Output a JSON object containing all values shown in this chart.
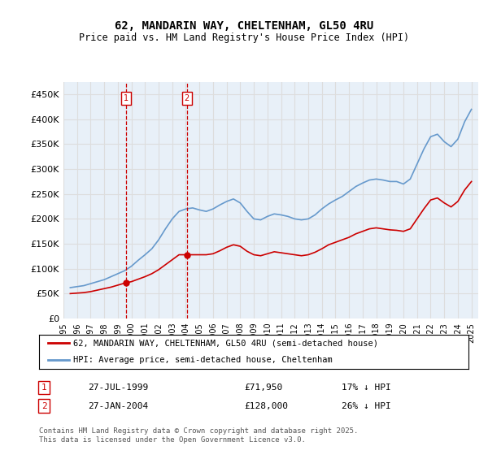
{
  "title": "62, MANDARIN WAY, CHELTENHAM, GL50 4RU",
  "subtitle": "Price paid vs. HM Land Registry's House Price Index (HPI)",
  "legend_line1": "62, MANDARIN WAY, CHELTENHAM, GL50 4RU (semi-detached house)",
  "legend_line2": "HPI: Average price, semi-detached house, Cheltenham",
  "footer": "Contains HM Land Registry data © Crown copyright and database right 2025.\nThis data is licensed under the Open Government Licence v3.0.",
  "annotation1_label": "1",
  "annotation1_date": "27-JUL-1999",
  "annotation1_price": "£71,950",
  "annotation1_hpi": "17% ↓ HPI",
  "annotation2_label": "2",
  "annotation2_date": "27-JAN-2004",
  "annotation2_price": "£128,000",
  "annotation2_hpi": "26% ↓ HPI",
  "red_color": "#cc0000",
  "blue_color": "#6699cc",
  "background_color": "#ffffff",
  "grid_color": "#dddddd",
  "ylim": [
    0,
    475000
  ],
  "yticks": [
    0,
    50000,
    100000,
    150000,
    200000,
    250000,
    300000,
    350000,
    400000,
    450000
  ],
  "sale1_x": 1999.58,
  "sale1_y": 71950,
  "sale2_x": 2004.08,
  "sale2_y": 128000,
  "hpi_x": [
    1995.5,
    1996.0,
    1996.5,
    1997.0,
    1997.5,
    1998.0,
    1998.5,
    1999.0,
    1999.5,
    2000.0,
    2000.5,
    2001.0,
    2001.5,
    2002.0,
    2002.5,
    2003.0,
    2003.5,
    2004.0,
    2004.5,
    2005.0,
    2005.5,
    2006.0,
    2006.5,
    2007.0,
    2007.5,
    2008.0,
    2008.5,
    2009.0,
    2009.5,
    2010.0,
    2010.5,
    2011.0,
    2011.5,
    2012.0,
    2012.5,
    2013.0,
    2013.5,
    2014.0,
    2014.5,
    2015.0,
    2015.5,
    2016.0,
    2016.5,
    2017.0,
    2017.5,
    2018.0,
    2018.5,
    2019.0,
    2019.5,
    2020.0,
    2020.5,
    2021.0,
    2021.5,
    2022.0,
    2022.5,
    2023.0,
    2023.5,
    2024.0,
    2024.5,
    2025.0
  ],
  "hpi_y": [
    62000,
    64000,
    66000,
    70000,
    74000,
    78000,
    84000,
    90000,
    96000,
    105000,
    117000,
    128000,
    140000,
    158000,
    180000,
    200000,
    215000,
    220000,
    222000,
    218000,
    215000,
    220000,
    228000,
    235000,
    240000,
    232000,
    215000,
    200000,
    198000,
    205000,
    210000,
    208000,
    205000,
    200000,
    198000,
    200000,
    208000,
    220000,
    230000,
    238000,
    245000,
    255000,
    265000,
    272000,
    278000,
    280000,
    278000,
    275000,
    275000,
    270000,
    280000,
    310000,
    340000,
    365000,
    370000,
    355000,
    345000,
    360000,
    395000,
    420000
  ],
  "red_x": [
    1995.5,
    1996.0,
    1996.5,
    1997.0,
    1997.5,
    1998.0,
    1998.5,
    1999.0,
    1999.5,
    2000.0,
    2000.5,
    2001.0,
    2001.5,
    2002.0,
    2002.5,
    2003.0,
    2003.5,
    2004.0,
    2004.5,
    2005.0,
    2005.5,
    2006.0,
    2006.5,
    2007.0,
    2007.5,
    2008.0,
    2008.5,
    2009.0,
    2009.5,
    2010.0,
    2010.5,
    2011.0,
    2011.5,
    2012.0,
    2012.5,
    2013.0,
    2013.5,
    2014.0,
    2014.5,
    2015.0,
    2015.5,
    2016.0,
    2016.5,
    2017.0,
    2017.5,
    2018.0,
    2018.5,
    2019.0,
    2019.5,
    2020.0,
    2020.5,
    2021.0,
    2021.5,
    2022.0,
    2022.5,
    2023.0,
    2023.5,
    2024.0,
    2024.5,
    2025.0
  ],
  "red_y": [
    50000,
    51000,
    52000,
    54000,
    57000,
    60000,
    63000,
    67000,
    71000,
    74000,
    79000,
    84000,
    90000,
    98000,
    108000,
    118000,
    128000,
    128000,
    128000,
    128000,
    128000,
    130000,
    136000,
    143000,
    148000,
    145000,
    135000,
    128000,
    126000,
    130000,
    134000,
    132000,
    130000,
    128000,
    126000,
    128000,
    133000,
    140000,
    148000,
    153000,
    158000,
    163000,
    170000,
    175000,
    180000,
    182000,
    180000,
    178000,
    177000,
    175000,
    180000,
    200000,
    220000,
    238000,
    242000,
    232000,
    224000,
    235000,
    258000,
    275000
  ],
  "vline1_x": 1999.58,
  "vline2_x": 2004.08,
  "xmin": 1995.0,
  "xmax": 2025.5,
  "xticks": [
    1995,
    1996,
    1997,
    1998,
    1999,
    2000,
    2001,
    2002,
    2003,
    2004,
    2005,
    2006,
    2007,
    2008,
    2009,
    2010,
    2011,
    2012,
    2013,
    2014,
    2015,
    2016,
    2017,
    2018,
    2019,
    2020,
    2021,
    2022,
    2023,
    2024,
    2025
  ]
}
